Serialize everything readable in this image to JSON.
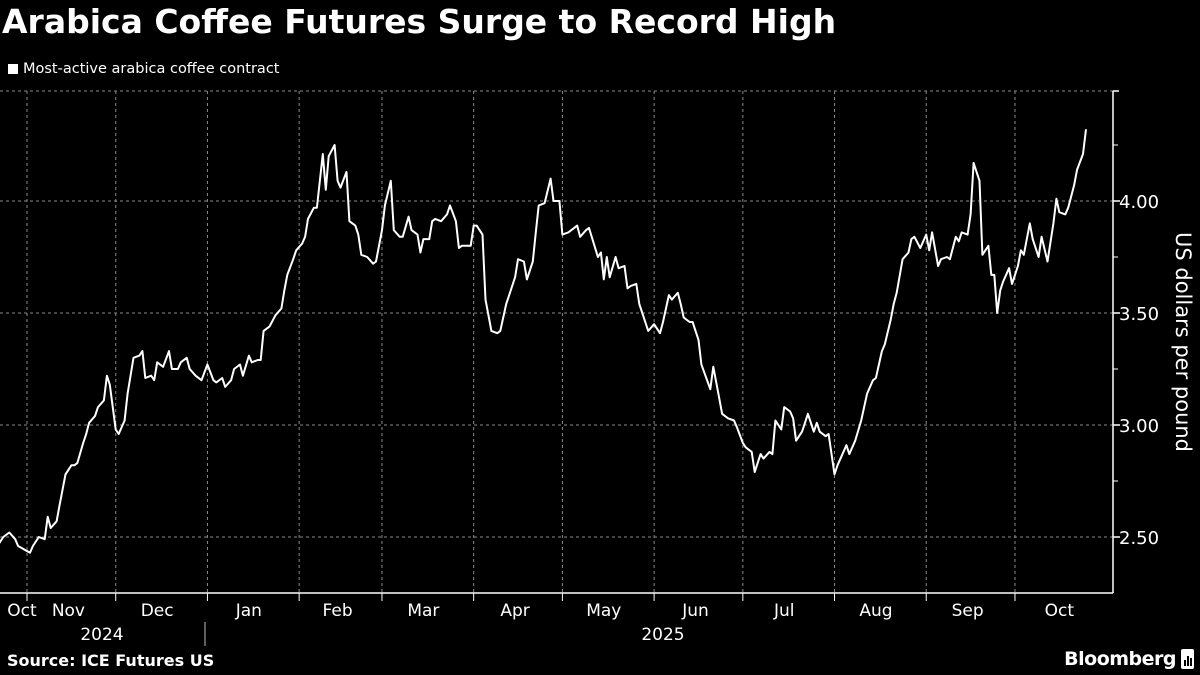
{
  "title": "Arabica Coffee Futures Surge to Record High",
  "legend": "Most-active arabica coffee contract",
  "source": "Source: ICE Futures US",
  "brand": "Bloomberg",
  "colors": {
    "background": "#000000",
    "line": "#ffffff",
    "grid": "#8a8a8a"
  },
  "chart_data": {
    "type": "line",
    "title": "Arabica Coffee Futures Surge to Record High",
    "ylabel": "US dollars per pound",
    "xlabel": "",
    "y_axis_side": "right",
    "ylim": [
      2.36,
      4.49
    ],
    "yticks": [
      "4.00",
      "3.50",
      "3.00",
      "2.50"
    ],
    "xlim": [
      "2024-10-22",
      "2025-10-27"
    ],
    "month_labels": [
      {
        "label": "Oct",
        "date": "2024-10-26"
      },
      {
        "label": "Nov",
        "date": "2024-11-15"
      },
      {
        "label": "Dec",
        "date": "2024-12-15"
      },
      {
        "label": "Jan",
        "date": "2025-01-15"
      },
      {
        "label": "Feb",
        "date": "2025-02-14"
      },
      {
        "label": "Mar",
        "date": "2025-03-15"
      },
      {
        "label": "Apr",
        "date": "2025-04-15"
      },
      {
        "label": "May",
        "date": "2025-05-15"
      },
      {
        "label": "Jun",
        "date": "2025-06-15"
      },
      {
        "label": "Jul",
        "date": "2025-07-15"
      },
      {
        "label": "Aug",
        "date": "2025-08-15"
      },
      {
        "label": "Sep",
        "date": "2025-09-15"
      },
      {
        "label": "Oct",
        "date": "2025-10-16"
      }
    ],
    "year_labels": [
      {
        "label": "2024",
        "date": "2024-11-15"
      },
      {
        "label": "2025",
        "date": "2025-05-31"
      }
    ],
    "grid": true,
    "legend_position": "top-left",
    "series": [
      {
        "name": "Most-active arabica coffee contract",
        "points": [
          [
            "2024-10-22",
            2.46
          ],
          [
            "2024-10-24",
            2.5
          ],
          [
            "2024-10-26",
            2.52
          ],
          [
            "2024-10-28",
            2.49
          ],
          [
            "2024-10-29",
            2.46
          ],
          [
            "2024-11-02",
            2.43
          ],
          [
            "2024-11-03",
            2.46
          ],
          [
            "2024-11-05",
            2.5
          ],
          [
            "2024-11-07",
            2.49
          ],
          [
            "2024-11-08",
            2.59
          ],
          [
            "2024-11-09",
            2.54
          ],
          [
            "2024-11-11",
            2.57
          ],
          [
            "2024-11-12",
            2.64
          ],
          [
            "2024-11-14",
            2.78
          ],
          [
            "2024-11-16",
            2.82
          ],
          [
            "2024-11-17",
            2.82
          ],
          [
            "2024-11-18",
            2.83
          ],
          [
            "2024-11-20",
            2.92
          ],
          [
            "2024-11-21",
            2.96
          ],
          [
            "2024-11-22",
            3.01
          ],
          [
            "2024-11-24",
            3.04
          ],
          [
            "2024-11-25",
            3.08
          ],
          [
            "2024-11-27",
            3.11
          ],
          [
            "2024-11-28",
            3.22
          ],
          [
            "2024-11-29",
            3.18
          ],
          [
            "2024-12-01",
            2.98
          ],
          [
            "2024-12-02",
            2.96
          ],
          [
            "2024-12-04",
            3.02
          ],
          [
            "2024-12-05",
            3.14
          ],
          [
            "2024-12-07",
            3.3
          ],
          [
            "2024-12-09",
            3.31
          ],
          [
            "2024-12-10",
            3.33
          ],
          [
            "2024-12-11",
            3.21
          ],
          [
            "2024-12-13",
            3.22
          ],
          [
            "2024-12-14",
            3.2
          ],
          [
            "2024-12-15",
            3.28
          ],
          [
            "2024-12-17",
            3.26
          ],
          [
            "2024-12-19",
            3.33
          ],
          [
            "2024-12-20",
            3.25
          ],
          [
            "2024-12-22",
            3.25
          ],
          [
            "2024-12-23",
            3.28
          ],
          [
            "2024-12-25",
            3.3
          ],
          [
            "2024-12-26",
            3.25
          ],
          [
            "2024-12-28",
            3.22
          ],
          [
            "2024-12-30",
            3.2
          ],
          [
            "2025-01-01",
            3.27
          ],
          [
            "2025-01-03",
            3.2
          ],
          [
            "2025-01-04",
            3.19
          ],
          [
            "2025-01-06",
            3.21
          ],
          [
            "2025-01-07",
            3.17
          ],
          [
            "2025-01-09",
            3.2
          ],
          [
            "2025-01-10",
            3.25
          ],
          [
            "2025-01-12",
            3.27
          ],
          [
            "2025-01-13",
            3.22
          ],
          [
            "2025-01-15",
            3.31
          ],
          [
            "2025-01-16",
            3.28
          ],
          [
            "2025-01-18",
            3.29
          ],
          [
            "2025-01-19",
            3.29
          ],
          [
            "2025-01-20",
            3.42
          ],
          [
            "2025-01-22",
            3.44
          ],
          [
            "2025-01-24",
            3.49
          ],
          [
            "2025-01-26",
            3.52
          ],
          [
            "2025-01-27",
            3.6
          ],
          [
            "2025-01-28",
            3.67
          ],
          [
            "2025-01-30",
            3.74
          ],
          [
            "2025-01-31",
            3.78
          ],
          [
            "2025-02-02",
            3.81
          ],
          [
            "2025-02-03",
            3.84
          ],
          [
            "2025-02-04",
            3.92
          ],
          [
            "2025-02-06",
            3.97
          ],
          [
            "2025-02-07",
            3.97
          ],
          [
            "2025-02-09",
            4.21
          ],
          [
            "2025-02-10",
            4.05
          ],
          [
            "2025-02-11",
            4.2
          ],
          [
            "2025-02-13",
            4.25
          ],
          [
            "2025-02-14",
            4.09
          ],
          [
            "2025-02-15",
            4.06
          ],
          [
            "2025-02-17",
            4.13
          ],
          [
            "2025-02-18",
            3.91
          ],
          [
            "2025-02-20",
            3.89
          ],
          [
            "2025-02-21",
            3.85
          ],
          [
            "2025-02-22",
            3.76
          ],
          [
            "2025-02-24",
            3.75
          ],
          [
            "2025-02-26",
            3.72
          ],
          [
            "2025-02-27",
            3.73
          ],
          [
            "2025-03-01",
            3.87
          ],
          [
            "2025-03-02",
            3.98
          ],
          [
            "2025-03-04",
            4.09
          ],
          [
            "2025-03-05",
            3.87
          ],
          [
            "2025-03-07",
            3.84
          ],
          [
            "2025-03-08",
            3.84
          ],
          [
            "2025-03-10",
            3.93
          ],
          [
            "2025-03-11",
            3.87
          ],
          [
            "2025-03-13",
            3.85
          ],
          [
            "2025-03-14",
            3.77
          ],
          [
            "2025-03-15",
            3.83
          ],
          [
            "2025-03-17",
            3.83
          ],
          [
            "2025-03-18",
            3.91
          ],
          [
            "2025-03-19",
            3.92
          ],
          [
            "2025-03-21",
            3.91
          ],
          [
            "2025-03-23",
            3.94
          ],
          [
            "2025-03-24",
            3.98
          ],
          [
            "2025-03-26",
            3.91
          ],
          [
            "2025-03-27",
            3.79
          ],
          [
            "2025-03-28",
            3.8
          ],
          [
            "2025-03-31",
            3.8
          ],
          [
            "2025-04-01",
            3.89
          ],
          [
            "2025-04-02",
            3.89
          ],
          [
            "2025-04-04",
            3.85
          ],
          [
            "2025-04-05",
            3.56
          ],
          [
            "2025-04-07",
            3.42
          ],
          [
            "2025-04-09",
            3.41
          ],
          [
            "2025-04-10",
            3.42
          ],
          [
            "2025-04-12",
            3.54
          ],
          [
            "2025-04-13",
            3.58
          ],
          [
            "2025-04-15",
            3.66
          ],
          [
            "2025-04-16",
            3.74
          ],
          [
            "2025-04-18",
            3.73
          ],
          [
            "2025-04-19",
            3.65
          ],
          [
            "2025-04-21",
            3.73
          ],
          [
            "2025-04-22",
            3.86
          ],
          [
            "2025-04-23",
            3.98
          ],
          [
            "2025-04-25",
            3.99
          ],
          [
            "2025-04-27",
            4.1
          ],
          [
            "2025-04-28",
            4.0
          ],
          [
            "2025-04-30",
            4.0
          ],
          [
            "2025-05-01",
            3.85
          ],
          [
            "2025-05-03",
            3.86
          ],
          [
            "2025-05-05",
            3.88
          ],
          [
            "2025-05-06",
            3.89
          ],
          [
            "2025-05-07",
            3.84
          ],
          [
            "2025-05-09",
            3.87
          ],
          [
            "2025-05-10",
            3.88
          ],
          [
            "2025-05-13",
            3.75
          ],
          [
            "2025-05-14",
            3.77
          ],
          [
            "2025-05-15",
            3.65
          ],
          [
            "2025-05-16",
            3.75
          ],
          [
            "2025-05-17",
            3.66
          ],
          [
            "2025-05-19",
            3.75
          ],
          [
            "2025-05-20",
            3.7
          ],
          [
            "2025-05-22",
            3.71
          ],
          [
            "2025-05-23",
            3.61
          ],
          [
            "2025-05-24",
            3.62
          ],
          [
            "2025-05-26",
            3.63
          ],
          [
            "2025-05-27",
            3.54
          ],
          [
            "2025-05-28",
            3.5
          ],
          [
            "2025-05-30",
            3.42
          ],
          [
            "2025-06-01",
            3.45
          ],
          [
            "2025-06-03",
            3.41
          ],
          [
            "2025-06-04",
            3.46
          ],
          [
            "2025-06-06",
            3.58
          ],
          [
            "2025-06-07",
            3.56
          ],
          [
            "2025-06-09",
            3.59
          ],
          [
            "2025-06-10",
            3.54
          ],
          [
            "2025-06-11",
            3.48
          ],
          [
            "2025-06-13",
            3.46
          ],
          [
            "2025-06-14",
            3.46
          ],
          [
            "2025-06-16",
            3.38
          ],
          [
            "2025-06-17",
            3.27
          ],
          [
            "2025-06-20",
            3.16
          ],
          [
            "2025-06-21",
            3.26
          ],
          [
            "2025-06-23",
            3.12
          ],
          [
            "2025-06-24",
            3.05
          ],
          [
            "2025-06-26",
            3.03
          ],
          [
            "2025-06-28",
            3.02
          ],
          [
            "2025-06-29",
            2.99
          ],
          [
            "2025-07-01",
            2.92
          ],
          [
            "2025-07-02",
            2.9
          ],
          [
            "2025-07-04",
            2.88
          ],
          [
            "2025-07-05",
            2.79
          ],
          [
            "2025-07-07",
            2.87
          ],
          [
            "2025-07-08",
            2.85
          ],
          [
            "2025-07-10",
            2.88
          ],
          [
            "2025-07-11",
            2.87
          ],
          [
            "2025-07-12",
            3.02
          ],
          [
            "2025-07-14",
            2.98
          ],
          [
            "2025-07-15",
            3.08
          ],
          [
            "2025-07-17",
            3.06
          ],
          [
            "2025-07-18",
            3.03
          ],
          [
            "2025-07-19",
            2.93
          ],
          [
            "2025-07-21",
            2.97
          ],
          [
            "2025-07-22",
            3.01
          ],
          [
            "2025-07-23",
            3.05
          ],
          [
            "2025-07-25",
            2.97
          ],
          [
            "2025-07-26",
            3.01
          ],
          [
            "2025-07-27",
            2.97
          ],
          [
            "2025-07-29",
            2.95
          ],
          [
            "2025-07-30",
            2.96
          ],
          [
            "2025-08-01",
            2.78
          ],
          [
            "2025-08-02",
            2.82
          ],
          [
            "2025-08-05",
            2.91
          ],
          [
            "2025-08-06",
            2.87
          ],
          [
            "2025-08-08",
            2.93
          ],
          [
            "2025-08-10",
            3.02
          ],
          [
            "2025-08-12",
            3.14
          ],
          [
            "2025-08-14",
            3.2
          ],
          [
            "2025-08-15",
            3.21
          ],
          [
            "2025-08-17",
            3.33
          ],
          [
            "2025-08-18",
            3.36
          ],
          [
            "2025-08-20",
            3.47
          ],
          [
            "2025-08-21",
            3.54
          ],
          [
            "2025-08-22",
            3.59
          ],
          [
            "2025-08-24",
            3.74
          ],
          [
            "2025-08-26",
            3.77
          ],
          [
            "2025-08-27",
            3.83
          ],
          [
            "2025-08-28",
            3.84
          ],
          [
            "2025-08-30",
            3.79
          ],
          [
            "2025-09-01",
            3.85
          ],
          [
            "2025-09-02",
            3.78
          ],
          [
            "2025-09-03",
            3.86
          ],
          [
            "2025-09-05",
            3.71
          ],
          [
            "2025-09-06",
            3.74
          ],
          [
            "2025-09-08",
            3.75
          ],
          [
            "2025-09-09",
            3.74
          ],
          [
            "2025-09-11",
            3.84
          ],
          [
            "2025-09-12",
            3.82
          ],
          [
            "2025-09-13",
            3.86
          ],
          [
            "2025-09-15",
            3.85
          ],
          [
            "2025-09-16",
            3.94
          ],
          [
            "2025-09-17",
            4.17
          ],
          [
            "2025-09-19",
            4.09
          ],
          [
            "2025-09-20",
            3.76
          ],
          [
            "2025-09-22",
            3.8
          ],
          [
            "2025-09-23",
            3.67
          ],
          [
            "2025-09-24",
            3.67
          ],
          [
            "2025-09-25",
            3.5
          ],
          [
            "2025-09-26",
            3.6
          ],
          [
            "2025-09-27",
            3.64
          ],
          [
            "2025-09-29",
            3.7
          ],
          [
            "2025-09-30",
            3.63
          ],
          [
            "2025-10-01",
            3.67
          ],
          [
            "2025-10-02",
            3.71
          ],
          [
            "2025-10-03",
            3.78
          ],
          [
            "2025-10-04",
            3.76
          ],
          [
            "2025-10-06",
            3.9
          ],
          [
            "2025-10-07",
            3.83
          ],
          [
            "2025-10-09",
            3.75
          ],
          [
            "2025-10-10",
            3.84
          ],
          [
            "2025-10-12",
            3.73
          ],
          [
            "2025-10-14",
            3.9
          ],
          [
            "2025-10-15",
            4.01
          ],
          [
            "2025-10-16",
            3.95
          ],
          [
            "2025-10-18",
            3.94
          ],
          [
            "2025-10-19",
            3.97
          ],
          [
            "2025-10-21",
            4.07
          ],
          [
            "2025-10-22",
            4.14
          ],
          [
            "2025-10-24",
            4.21
          ],
          [
            "2025-10-25",
            4.32
          ]
        ]
      }
    ]
  }
}
